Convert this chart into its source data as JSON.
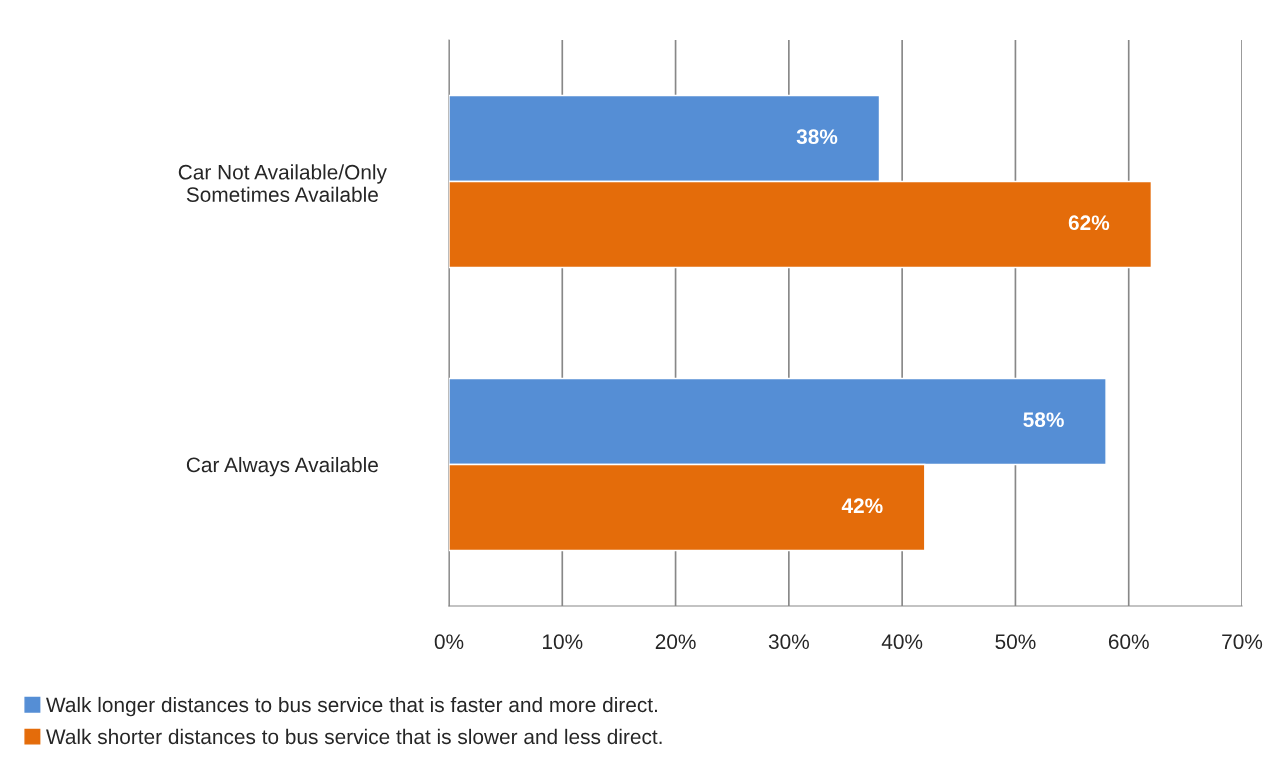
{
  "chart_data": {
    "type": "bar",
    "orientation": "horizontal",
    "categories": [
      "Car Not Available/Only\nSometimes Available",
      "Car Always Available"
    ],
    "series": [
      {
        "name": "Walk longer distances to bus service that is faster and more direct.",
        "color": "#558ed5",
        "values": [
          38,
          58
        ]
      },
      {
        "name": "Walk shorter distances to bus service that is slower and less direct.",
        "color": "#e46c0a",
        "values": [
          62,
          42
        ]
      }
    ],
    "xlim": [
      0,
      70
    ],
    "xticks": [
      {
        "value": 0,
        "label": "0%"
      },
      {
        "value": 10,
        "label": "10%"
      },
      {
        "value": 20,
        "label": "20%"
      },
      {
        "value": 30,
        "label": "30%"
      },
      {
        "value": 40,
        "label": "40%"
      },
      {
        "value": 50,
        "label": "50%"
      },
      {
        "value": 60,
        "label": "60%"
      },
      {
        "value": 70,
        "label": "70%"
      }
    ],
    "value_labels": [
      [
        "38%",
        "58%"
      ],
      [
        "62%",
        "42%"
      ]
    ],
    "grid": "x",
    "legend": "bottom"
  }
}
